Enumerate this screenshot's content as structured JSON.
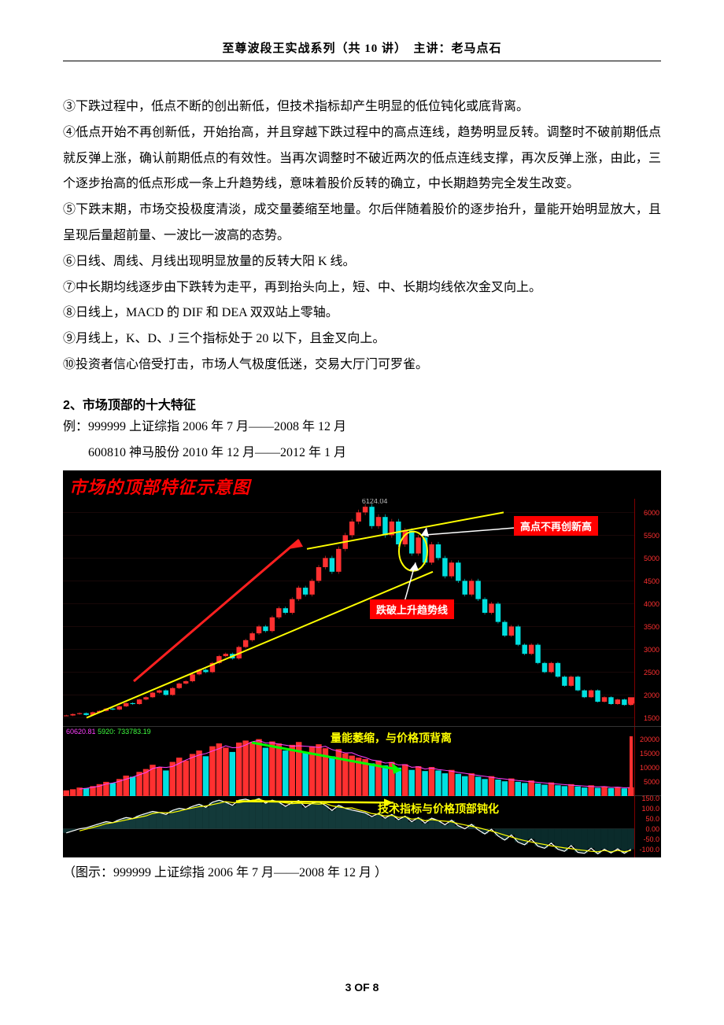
{
  "header": {
    "text": "至尊波段王实战系列（共 10 讲）　主讲：老马点石"
  },
  "paragraphs": {
    "p3": "③下跌过程中，低点不断的创出新低，但技术指标却产生明显的低位钝化或底背离。",
    "p4": "④低点开始不再创新低，开始抬高，并且穿越下跌过程中的高点连线，趋势明显反转。调整时不破前期低点就反弹上涨，确认前期低点的有效性。当再次调整时不破近两次的低点连线支撑，再次反弹上涨，由此，三个逐步抬高的低点形成一条上升趋势线，意味着股价反转的确立，中长期趋势完全发生改变。",
    "p5": "⑤下跌末期，市场交投极度清淡，成交量萎缩至地量。尔后伴随着股价的逐步抬升，量能开始明显放大，且呈现后量超前量、一波比一波高的态势。",
    "p6": "⑥日线、周线、月线出现明显放量的反转大阳 K 线。",
    "p7": "⑦中长期均线逐步由下跌转为走平，再到抬头向上，短、中、长期均线依次金叉向上。",
    "p8": "⑧日线上，MACD 的 DIF 和 DEA 双双站上零轴。",
    "p9": "⑨月线上，K、D、J 三个指标处于 20 以下，且金叉向上。",
    "p10": "⑩投资者信心倍受打击，市场人气极度低迷，交易大厅门可罗雀。"
  },
  "section2": {
    "heading": "2、市场顶部的十大特征",
    "ex1": "例：999999 上证综指 2006 年 7 月——2008 年 12 月",
    "ex2": "600810 神马股份 2010 年 12 月——2012 年 1 月"
  },
  "chart": {
    "title": "市场的顶部特征示意图",
    "peak_label": "6124.04",
    "label_high_no_new": "高点不再创新高",
    "label_break_trend": "跌破上升趋势线",
    "label_volume": "量能萎缩，与价格顶背离",
    "label_indicator": "技术指标与价格顶部钝化",
    "vol_text_a": "60620.81",
    "vol_text_b": "5920: 733783.19",
    "price_axis": {
      "ticks": [
        6000,
        5500,
        5000,
        4500,
        4000,
        3500,
        3000,
        2500,
        2000,
        1500
      ],
      "ymin": 1300,
      "ymax": 6300,
      "color": "#ff3030"
    },
    "vol_axis": {
      "ticks": [
        20000,
        15000,
        10000,
        5000
      ],
      "color": "#ff3030"
    },
    "ind_axis": {
      "ticks": [
        "150.0",
        "100.0",
        "50.0",
        "0.00",
        "-50.0",
        "-100.0"
      ],
      "color": "#ff3030"
    },
    "colors": {
      "bg": "#000000",
      "title": "#ff0000",
      "annotation_box": "#ff0000",
      "annotation_text": "#ffffff",
      "yellow": "#ffff00",
      "trendline_yellow": "#ffff00",
      "arrow_red": "#ff2020",
      "arrow_green": "#00ff00",
      "candle_up": "#ff3030",
      "candle_down": "#00e0e0",
      "ma_purple": "#ff40ff",
      "ma_green": "#40ff40"
    },
    "price_series": [
      1550,
      1580,
      1600,
      1560,
      1620,
      1650,
      1700,
      1680,
      1750,
      1820,
      1800,
      1900,
      1950,
      2050,
      2100,
      2000,
      2150,
      2250,
      2300,
      2450,
      2550,
      2500,
      2700,
      2850,
      2900,
      2800,
      3050,
      3200,
      3350,
      3500,
      3400,
      3700,
      3900,
      3800,
      4100,
      4350,
      4200,
      4500,
      4800,
      5000,
      4700,
      5200,
      5500,
      5800,
      6000,
      6124,
      5700,
      5900,
      5500,
      5800,
      5300,
      5600,
      5100,
      5450,
      4900,
      5300,
      5000,
      4600,
      4900,
      4500,
      4200,
      4500,
      4100,
      3800,
      4000,
      3600,
      3300,
      3500,
      3100,
      2900,
      3100,
      2700,
      2500,
      2700,
      2400,
      2200,
      2400,
      2100,
      1950,
      2100,
      1850,
      1950,
      1800,
      1900,
      1780,
      1880
    ],
    "vol_series": [
      2000,
      2400,
      3000,
      2800,
      3500,
      4200,
      5000,
      4600,
      6000,
      7200,
      6800,
      8500,
      9500,
      11000,
      10200,
      9000,
      12000,
      13500,
      12500,
      14800,
      16000,
      14000,
      17500,
      18500,
      17000,
      15500,
      18800,
      19500,
      19000,
      20000,
      17000,
      19200,
      18500,
      16000,
      18000,
      19000,
      15500,
      17500,
      18200,
      16800,
      14000,
      16500,
      15000,
      14200,
      13500,
      13000,
      11500,
      12500,
      10800,
      12000,
      10000,
      11200,
      9200,
      10500,
      8800,
      10200,
      9000,
      8000,
      9200,
      7800,
      7000,
      8000,
      6800,
      6000,
      7000,
      5800,
      5200,
      6200,
      5000,
      4600,
      5500,
      4400,
      4000,
      4800,
      3800,
      3500,
      4200,
      3400,
      3000,
      3800,
      2900,
      3400,
      2800,
      3200,
      2700,
      3100
    ],
    "ind_series": [
      -20,
      -10,
      0,
      5,
      15,
      25,
      35,
      30,
      45,
      55,
      50,
      65,
      75,
      85,
      80,
      70,
      90,
      100,
      95,
      110,
      120,
      105,
      130,
      140,
      130,
      115,
      140,
      145,
      135,
      148,
      125,
      140,
      130,
      110,
      128,
      138,
      105,
      125,
      132,
      115,
      90,
      115,
      100,
      92,
      85,
      78,
      60,
      75,
      52,
      70,
      45,
      62,
      35,
      55,
      28,
      52,
      40,
      20,
      42,
      15,
      0,
      22,
      -5,
      -25,
      -2,
      -35,
      -55,
      -30,
      -65,
      -78,
      -50,
      -85,
      -95,
      -70,
      -100,
      -110,
      -82,
      -115,
      -120,
      -95,
      -122,
      -100,
      -118,
      -98,
      -120,
      -100
    ]
  },
  "caption": "（图示：999999 上证综指 2006 年 7 月——2008 年 12 月 ）",
  "footer": "3 OF 8"
}
